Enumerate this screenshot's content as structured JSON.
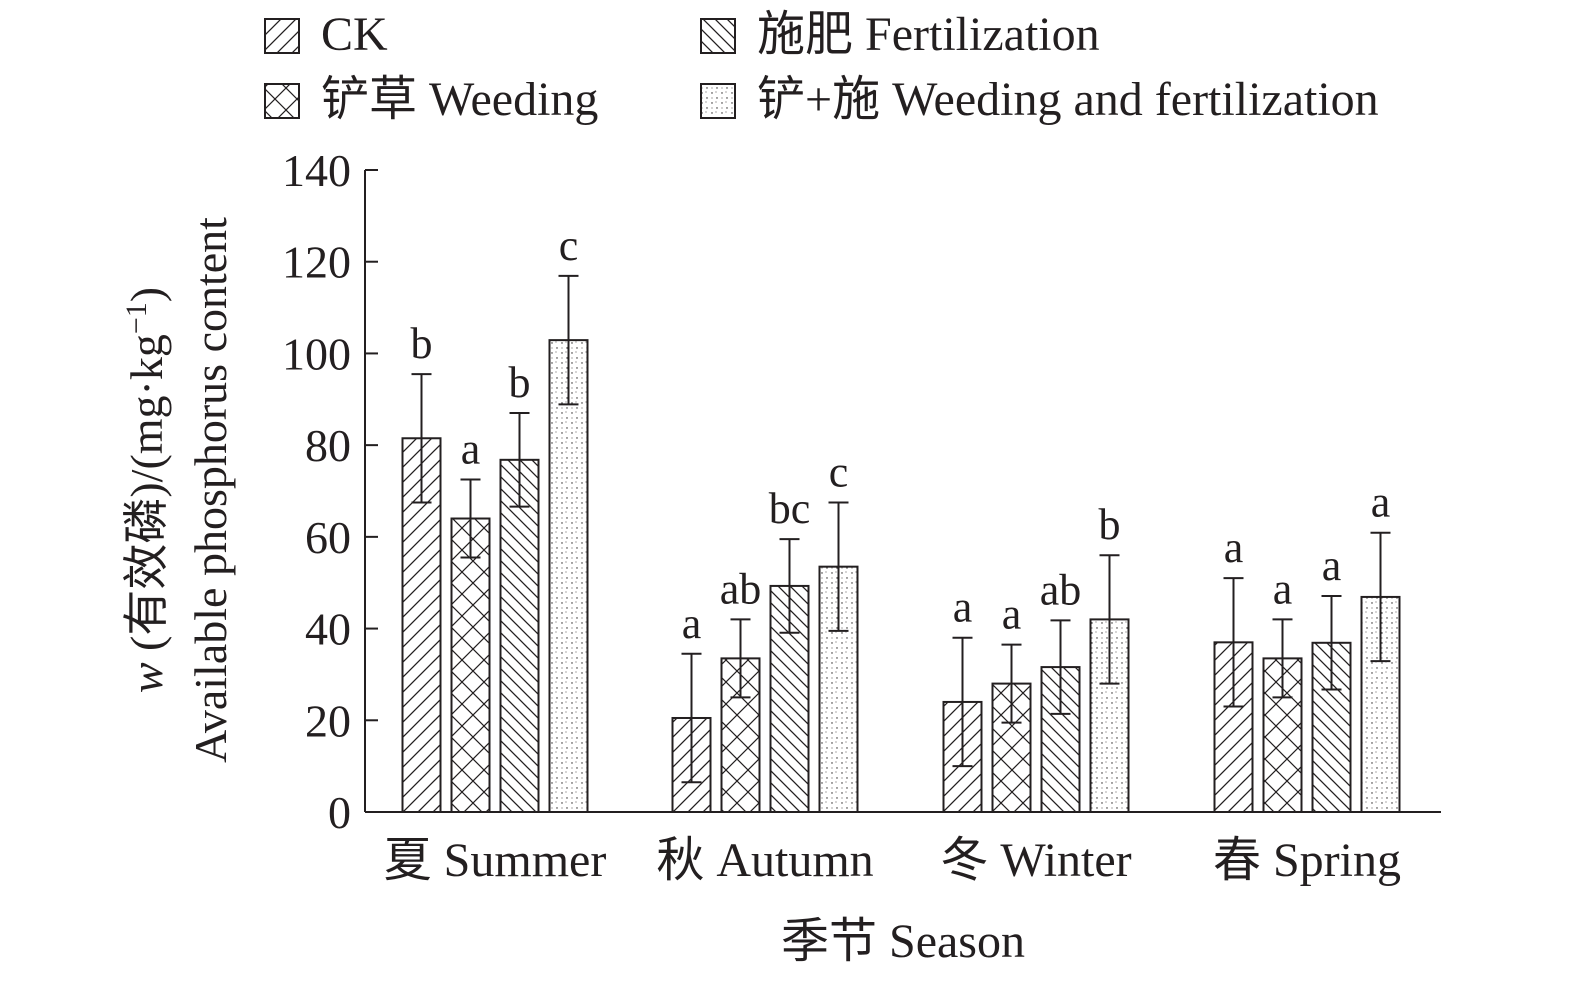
{
  "chart_data": {
    "type": "bar",
    "title": "",
    "xlabel": "季节 Season",
    "ylabel_var": "w",
    "ylabel_line1_rest": " (有效磷)/(mg·kg",
    "ylabel_sup": "−1",
    "ylabel_line1_end": ")",
    "ylabel_line2": "Available phosphorus content",
    "ylim": [
      0,
      140
    ],
    "yticks": [
      "0",
      "20",
      "40",
      "60",
      "80",
      "100",
      "120",
      "140"
    ],
    "grid": false,
    "legend_position": "top",
    "categories": [
      "夏 Summer",
      "秋 Autumn",
      "冬 Winter",
      "春 Spring"
    ],
    "series": [
      {
        "name": "CK",
        "pattern": "diagonal-hatch",
        "values": [
          81.5,
          20.5,
          24.0,
          37.0
        ],
        "error": [
          14.0,
          14.0,
          14.0,
          14.0
        ],
        "letters": [
          "b",
          "a",
          "a",
          "a"
        ]
      },
      {
        "name": "铲草 Weeding",
        "pattern": "cross-hatch",
        "values": [
          64.0,
          33.5,
          28.0,
          33.5
        ],
        "error": [
          8.5,
          8.5,
          8.5,
          8.5
        ],
        "letters": [
          "a",
          "ab",
          "a",
          "a"
        ]
      },
      {
        "name": "施肥 Fertilization",
        "pattern": "back-diagonal-hatch",
        "values": [
          76.8,
          49.3,
          31.6,
          36.9
        ],
        "error": [
          10.2,
          10.2,
          10.2,
          10.2
        ],
        "letters": [
          "b",
          "bc",
          "ab",
          "a"
        ]
      },
      {
        "name": "铲+施 Weeding and fertilization",
        "pattern": "dots",
        "values": [
          102.9,
          53.5,
          42.0,
          46.9
        ],
        "error": [
          14.0,
          14.0,
          14.0,
          14.0
        ],
        "letters": [
          "c",
          "c",
          "b",
          "a"
        ]
      }
    ],
    "colors": {
      "ink": "#231f20",
      "fill": "#ffffff"
    }
  }
}
